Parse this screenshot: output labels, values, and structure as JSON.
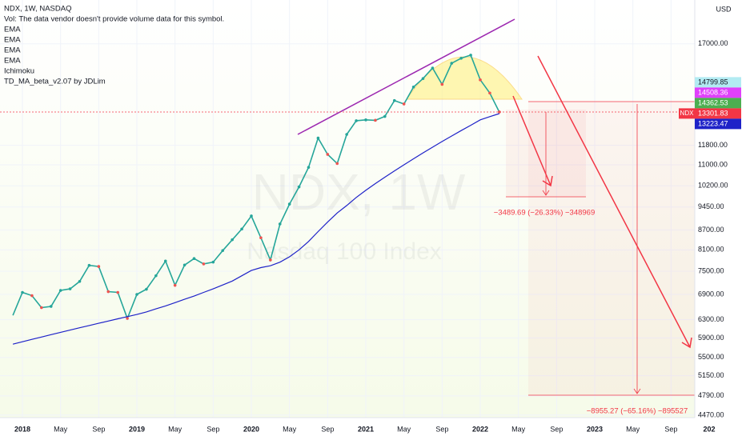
{
  "chart_data": {
    "type": "line",
    "title": "NDX, 1W, NASDAQ",
    "subtitle": "Vol: The data vendor doesn't provide volume data for this symbol.",
    "indicators": [
      "EMA",
      "EMA",
      "EMA",
      "Ichimoku",
      "TD_MA_beta_v2.07 by JDLim"
    ],
    "watermark": [
      "NDX, 1W",
      "Nasdaq 100 Index"
    ],
    "currency": "USD",
    "log_scale": true,
    "ylim": [
      4430,
      19900
    ],
    "yticks": [
      {
        "value": 17000,
        "label": "17000.00"
      },
      {
        "value": 11800,
        "label": "11800.00"
      },
      {
        "value": 11000,
        "label": "11000.00"
      },
      {
        "value": 10200,
        "label": "10200.00"
      },
      {
        "value": 9450,
        "label": "9450.00"
      },
      {
        "value": 8700,
        "label": "8700.00"
      },
      {
        "value": 8100,
        "label": "8100.00"
      },
      {
        "value": 7500,
        "label": "7500.00"
      },
      {
        "value": 6900,
        "label": "6900.00"
      },
      {
        "value": 6300,
        "label": "6300.00"
      },
      {
        "value": 5900,
        "label": "5900.00"
      },
      {
        "value": 5500,
        "label": "5500.00"
      },
      {
        "value": 5150,
        "label": "5150.00"
      },
      {
        "value": 4790,
        "label": "4790.00"
      },
      {
        "value": 4470,
        "label": "4470.00"
      }
    ],
    "xticks": [
      {
        "value": "2018-01",
        "label": "2018"
      },
      {
        "value": "2018-05",
        "label": "May"
      },
      {
        "value": "2018-09",
        "label": "Sep"
      },
      {
        "value": "2019-01",
        "label": "2019"
      },
      {
        "value": "2019-05",
        "label": "May"
      },
      {
        "value": "2019-09",
        "label": "Sep"
      },
      {
        "value": "2020-01",
        "label": "2020"
      },
      {
        "value": "2020-05",
        "label": "May"
      },
      {
        "value": "2020-09",
        "label": "Sep"
      },
      {
        "value": "2021-01",
        "label": "2021"
      },
      {
        "value": "2021-05",
        "label": "May"
      },
      {
        "value": "2021-09",
        "label": "Sep"
      },
      {
        "value": "2022-01",
        "label": "2022"
      },
      {
        "value": "2022-05",
        "label": "May"
      },
      {
        "value": "2022-09",
        "label": "Sep"
      },
      {
        "value": "2023-01",
        "label": "2023"
      },
      {
        "value": "2023-05",
        "label": "May"
      },
      {
        "value": "2023-09",
        "label": "Sep"
      },
      {
        "value": "2024-01",
        "label": "202"
      }
    ],
    "x": [
      "2017-12",
      "2018-01",
      "2018-02",
      "2018-03",
      "2018-04",
      "2018-05",
      "2018-06",
      "2018-07",
      "2018-08",
      "2018-09",
      "2018-10",
      "2018-11",
      "2018-12",
      "2019-01",
      "2019-02",
      "2019-03",
      "2019-04",
      "2019-05",
      "2019-06",
      "2019-07",
      "2019-08",
      "2019-09",
      "2019-10",
      "2019-11",
      "2019-12",
      "2020-01",
      "2020-02",
      "2020-03",
      "2020-04",
      "2020-05",
      "2020-06",
      "2020-07",
      "2020-08",
      "2020-09",
      "2020-10",
      "2020-11",
      "2020-12",
      "2021-01",
      "2021-02",
      "2021-03",
      "2021-04",
      "2021-05",
      "2021-06",
      "2021-07",
      "2021-08",
      "2021-09",
      "2021-10",
      "2021-11",
      "2021-12",
      "2022-01",
      "2022-02",
      "2022-03"
    ],
    "series": [
      {
        "name": "NDX",
        "color": "#26a69a",
        "values": [
          6400,
          6950,
          6870,
          6580,
          6610,
          7000,
          7040,
          7230,
          7660,
          7630,
          6970,
          6950,
          6330,
          6900,
          7030,
          7380,
          7780,
          7130,
          7670,
          7850,
          7700,
          7750,
          8080,
          8400,
          8730,
          9150,
          8460,
          7810,
          8890,
          9550,
          10160,
          10900,
          12110,
          11420,
          11050,
          12270,
          12890,
          12930,
          12910,
          13090,
          13860,
          13690,
          14550,
          15000,
          15580,
          14690,
          15850,
          16140,
          16320,
          14930,
          14240,
          13301.83
        ]
      },
      {
        "name": "EMA",
        "color": "#1e22c8",
        "values": [
          5770,
          5820,
          5870,
          5920,
          5970,
          6020,
          6070,
          6120,
          6170,
          6220,
          6270,
          6320,
          6370,
          6420,
          6480,
          6550,
          6620,
          6700,
          6780,
          6860,
          6950,
          7040,
          7140,
          7240,
          7380,
          7520,
          7600,
          7650,
          7750,
          7900,
          8100,
          8350,
          8650,
          8950,
          9250,
          9500,
          9780,
          10035,
          10280,
          10520,
          10760,
          11000,
          11240,
          11480,
          11720,
          11960,
          12200,
          12440,
          12680,
          12930,
          13080,
          13223
        ]
      }
    ],
    "price_labels": [
      {
        "value": 14799.85,
        "color": "#b2ebf2",
        "text_color": "#131722"
      },
      {
        "value": 14508.36,
        "color": "#e040fb",
        "text_color": "#ffffff"
      },
      {
        "value": 14362.53,
        "color": "#4caf50",
        "text_color": "#ffffff"
      },
      {
        "value": 13301.83,
        "color": "#f23645",
        "text_color": "#ffffff",
        "tag": "NDX"
      },
      {
        "value": 13223.47,
        "color": "#1e22c8",
        "text_color": "#ffffff"
      }
    ],
    "annotations": [
      "−3489.69 (−26.33%) −348969",
      "−8955.27 (−65.16%) −895527"
    ]
  }
}
